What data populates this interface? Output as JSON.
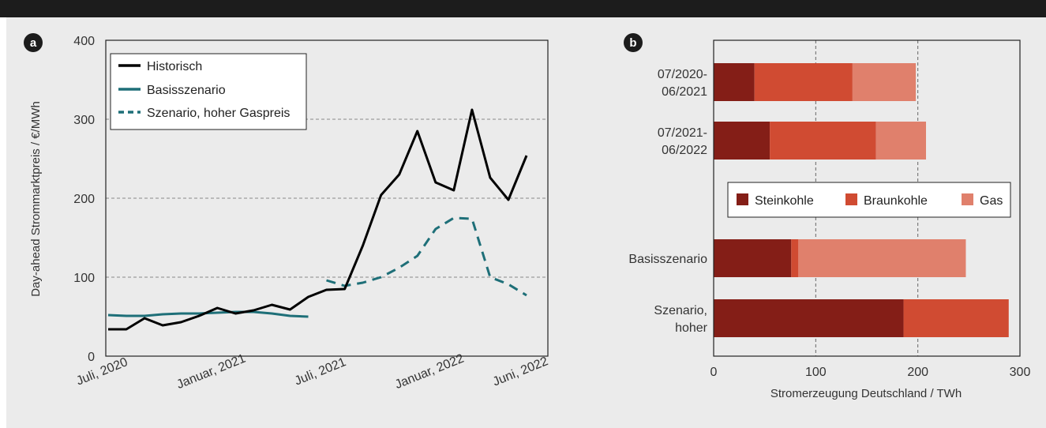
{
  "chart_data": [
    {
      "panel_label": "a",
      "type": "line",
      "ylabel": "Day-ahead Strommarktpreis / €/MWh",
      "ylim": [
        0,
        400
      ],
      "yticks": [
        0,
        100,
        200,
        300,
        400
      ],
      "x_range": [
        "2020-07",
        "2022-06"
      ],
      "x_tick_labels": [
        {
          "label": "Juli, 2020",
          "x": "2020-07"
        },
        {
          "label": "Januar, 2021",
          "x": "2021-01"
        },
        {
          "label": "Juli, 2021",
          "x": "2021-07"
        },
        {
          "label": "Januar, 2022",
          "x": "2022-01"
        },
        {
          "label": "Juni, 2022",
          "x": "2022-06"
        }
      ],
      "grid": "horizontal-dashed",
      "legend_position": "top-left",
      "series": [
        {
          "name": "Historisch",
          "style": "solid",
          "color": "#000000",
          "x": [
            "2020-07",
            "2020-08",
            "2020-09",
            "2020-10",
            "2020-11",
            "2020-12",
            "2021-01",
            "2021-02",
            "2021-03",
            "2021-04",
            "2021-05",
            "2021-06",
            "2021-07",
            "2021-08",
            "2021-09",
            "2021-10",
            "2021-11",
            "2021-12",
            "2022-01",
            "2022-02",
            "2022-03",
            "2022-04",
            "2022-05",
            "2022-06"
          ],
          "values": [
            34,
            34,
            48,
            39,
            43,
            51,
            61,
            54,
            58,
            65,
            59,
            75,
            84,
            85,
            140,
            204,
            230,
            285,
            220,
            210,
            312,
            226,
            198,
            254
          ]
        },
        {
          "name": "Basisszenario",
          "style": "solid",
          "color": "#1e6f78",
          "x": [
            "2020-07",
            "2020-08",
            "2020-09",
            "2020-10",
            "2020-11",
            "2020-12",
            "2021-01",
            "2021-02",
            "2021-03",
            "2021-04",
            "2021-05",
            "2021-06"
          ],
          "values": [
            52,
            51,
            51,
            53,
            54,
            54,
            55,
            56,
            56,
            54,
            51,
            50
          ]
        },
        {
          "name": "Szenario, hoher Gaspreis",
          "style": "dashed",
          "color": "#1e6f78",
          "x": [
            "2021-07",
            "2021-08",
            "2021-09",
            "2021-10",
            "2021-11",
            "2021-12",
            "2022-01",
            "2022-02",
            "2022-03",
            "2022-04",
            "2022-05",
            "2022-06"
          ],
          "values": [
            96,
            89,
            93,
            100,
            112,
            127,
            161,
            175,
            174,
            100,
            91,
            77
          ]
        }
      ]
    },
    {
      "panel_label": "b",
      "type": "bar",
      "orientation": "horizontal",
      "stacked": true,
      "xlabel": "Stromerzeugung Deutschland / TWh",
      "xlim": [
        0,
        300
      ],
      "xticks": [
        0,
        100,
        200,
        300
      ],
      "grid": "vertical-dashed",
      "legend_position": "center",
      "categories": [
        [
          "07/2020-",
          "06/2021"
        ],
        [
          "07/2021-",
          "06/2022"
        ],
        [
          "Basisszenario"
        ],
        [
          "Szenario,",
          "hoher"
        ]
      ],
      "series": [
        {
          "name": "Steinkohle",
          "color": "#841e17",
          "values": [
            40,
            55,
            76,
            186
          ]
        },
        {
          "name": "Braunkohle",
          "color": "#d04b32",
          "values": [
            96,
            104,
            7,
            103
          ]
        },
        {
          "name": "Gas",
          "color": "#e0806c",
          "values": [
            62,
            49,
            164,
            0
          ]
        }
      ]
    }
  ]
}
